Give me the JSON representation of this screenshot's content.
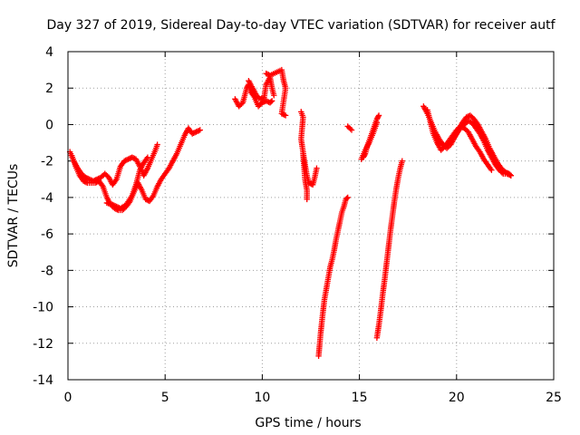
{
  "chart_data": {
    "type": "scatter",
    "title": "Day 327 of 2019, Sidereal Day-to-day VTEC variation (SDTVAR) for receiver autf",
    "xlabel": "GPS time / hours",
    "ylabel": "SDTVAR / TECUs",
    "xlim": [
      0,
      25
    ],
    "ylim": [
      -14,
      4
    ],
    "x_ticks": [
      0,
      5,
      10,
      15,
      20,
      25
    ],
    "y_ticks": [
      -14,
      -12,
      -10,
      -8,
      -6,
      -4,
      -2,
      0,
      2,
      4
    ],
    "grid": true,
    "marker": "plus",
    "color": "#ff0000",
    "series": [
      {
        "name": "SDTVAR",
        "segments": [
          [
            [
              0.1,
              -1.5
            ],
            [
              0.3,
              -2.0
            ],
            [
              0.5,
              -2.4
            ],
            [
              0.7,
              -2.7
            ],
            [
              0.9,
              -2.9
            ],
            [
              1.1,
              -3.0
            ],
            [
              1.3,
              -3.1
            ],
            [
              1.5,
              -3.0
            ],
            [
              1.7,
              -2.9
            ],
            [
              1.9,
              -2.7
            ],
            [
              2.1,
              -2.9
            ],
            [
              2.3,
              -3.3
            ],
            [
              2.5,
              -3.0
            ],
            [
              2.7,
              -2.3
            ],
            [
              2.9,
              -2.0
            ],
            [
              3.1,
              -1.9
            ],
            [
              3.3,
              -1.8
            ],
            [
              3.5,
              -1.9
            ],
            [
              3.7,
              -2.3
            ],
            [
              3.9,
              -2.8
            ],
            [
              4.1,
              -2.4
            ],
            [
              4.3,
              -1.9
            ],
            [
              4.5,
              -1.4
            ],
            [
              4.6,
              -1.1
            ]
          ],
          [
            [
              0.2,
              -1.7
            ],
            [
              0.4,
              -2.3
            ],
            [
              0.6,
              -2.8
            ],
            [
              0.8,
              -3.1
            ],
            [
              1.0,
              -3.2
            ],
            [
              1.2,
              -3.2
            ],
            [
              1.4,
              -3.2
            ],
            [
              1.6,
              -3.1
            ],
            [
              1.8,
              -3.4
            ],
            [
              2.0,
              -4.0
            ],
            [
              2.2,
              -4.4
            ],
            [
              2.4,
              -4.6
            ],
            [
              2.6,
              -4.7
            ],
            [
              2.8,
              -4.7
            ],
            [
              3.0,
              -4.5
            ],
            [
              3.2,
              -4.2
            ],
            [
              3.4,
              -3.7
            ],
            [
              3.6,
              -3.2
            ],
            [
              3.8,
              -3.6
            ],
            [
              4.0,
              -4.1
            ],
            [
              4.2,
              -4.2
            ],
            [
              4.4,
              -3.9
            ],
            [
              4.6,
              -3.4
            ],
            [
              4.8,
              -3.0
            ],
            [
              5.0,
              -2.7
            ],
            [
              5.2,
              -2.4
            ],
            [
              5.4,
              -2.0
            ],
            [
              5.6,
              -1.6
            ],
            [
              5.8,
              -1.1
            ],
            [
              6.0,
              -0.6
            ],
            [
              6.2,
              -0.2
            ],
            [
              6.4,
              -0.5
            ],
            [
              6.6,
              -0.4
            ],
            [
              6.8,
              -0.3
            ]
          ],
          [
            [
              2.0,
              -4.3
            ],
            [
              2.3,
              -4.4
            ],
            [
              2.5,
              -4.5
            ],
            [
              2.7,
              -4.6
            ],
            [
              3.0,
              -4.4
            ],
            [
              3.3,
              -3.9
            ],
            [
              3.5,
              -3.3
            ],
            [
              3.7,
              -2.5
            ],
            [
              3.9,
              -2.1
            ],
            [
              4.1,
              -1.8
            ]
          ],
          [
            [
              8.6,
              1.4
            ],
            [
              8.8,
              1.0
            ],
            [
              9.0,
              1.2
            ],
            [
              9.2,
              2.0
            ],
            [
              9.3,
              2.2
            ],
            [
              9.4,
              1.8
            ],
            [
              9.6,
              1.5
            ],
            [
              9.8,
              1.0
            ],
            [
              10.0,
              1.2
            ],
            [
              10.2,
              1.3
            ],
            [
              10.4,
              1.2
            ],
            [
              10.5,
              1.3
            ]
          ],
          [
            [
              9.3,
              2.4
            ],
            [
              9.5,
              2.0
            ],
            [
              9.7,
              1.6
            ],
            [
              9.9,
              1.4
            ],
            [
              10.1,
              1.5
            ],
            [
              10.2,
              2.2
            ],
            [
              10.4,
              2.6
            ],
            [
              10.5,
              2.0
            ],
            [
              10.6,
              1.6
            ]
          ],
          [
            [
              10.2,
              2.8
            ],
            [
              10.4,
              2.7
            ],
            [
              11.0,
              3.0
            ],
            [
              11.1,
              2.4
            ],
            [
              11.2,
              2.0
            ],
            [
              11.0,
              0.6
            ],
            [
              11.2,
              0.5
            ]
          ],
          [
            [
              12.0,
              0.7
            ],
            [
              12.1,
              0.4
            ],
            [
              12.0,
              -0.8
            ],
            [
              12.1,
              -1.5
            ],
            [
              12.2,
              -2.2
            ],
            [
              12.3,
              -2.8
            ],
            [
              12.4,
              -3.2
            ],
            [
              12.6,
              -3.3
            ],
            [
              12.7,
              -2.9
            ],
            [
              12.8,
              -2.4
            ]
          ],
          [
            [
              12.1,
              -1.6
            ],
            [
              12.2,
              -3.0
            ],
            [
              12.3,
              -3.6
            ],
            [
              12.3,
              -4.1
            ]
          ],
          [
            [
              12.9,
              -12.7
            ],
            [
              13.0,
              -11.5
            ],
            [
              13.1,
              -10.5
            ],
            [
              13.2,
              -9.6
            ],
            [
              13.3,
              -9.0
            ],
            [
              13.4,
              -8.4
            ],
            [
              13.5,
              -7.8
            ],
            [
              13.6,
              -7.4
            ],
            [
              13.7,
              -6.9
            ],
            [
              13.8,
              -6.3
            ],
            [
              13.9,
              -5.8
            ],
            [
              14.0,
              -5.3
            ],
            [
              14.1,
              -4.8
            ],
            [
              14.2,
              -4.5
            ],
            [
              14.3,
              -4.1
            ],
            [
              14.4,
              -4.0
            ]
          ],
          [
            [
              14.4,
              -0.1
            ],
            [
              14.6,
              -0.3
            ]
          ],
          [
            [
              15.2,
              -1.8
            ],
            [
              15.3,
              -1.6
            ],
            [
              15.4,
              -1.2
            ],
            [
              15.5,
              -0.9
            ],
            [
              15.6,
              -0.6
            ],
            [
              15.7,
              -0.3
            ],
            [
              15.8,
              0.0
            ],
            [
              15.9,
              0.3
            ],
            [
              16.0,
              0.5
            ]
          ],
          [
            [
              15.1,
              -1.9
            ],
            [
              15.3,
              -1.4
            ],
            [
              15.5,
              -1.0
            ],
            [
              15.7,
              -0.5
            ],
            [
              15.9,
              0.1
            ]
          ],
          [
            [
              15.9,
              -11.7
            ],
            [
              16.0,
              -11.0
            ],
            [
              16.1,
              -10.2
            ],
            [
              16.2,
              -9.3
            ],
            [
              16.3,
              -8.5
            ],
            [
              16.4,
              -7.6
            ],
            [
              16.5,
              -6.7
            ],
            [
              16.6,
              -5.8
            ],
            [
              16.7,
              -5.0
            ],
            [
              16.8,
              -4.2
            ],
            [
              16.9,
              -3.5
            ],
            [
              17.0,
              -2.9
            ],
            [
              17.1,
              -2.4
            ],
            [
              17.2,
              -2.0
            ]
          ],
          [
            [
              18.3,
              1.0
            ],
            [
              18.5,
              0.6
            ],
            [
              18.7,
              0.1
            ],
            [
              18.9,
              -0.4
            ],
            [
              19.1,
              -0.8
            ],
            [
              19.3,
              -1.1
            ],
            [
              19.5,
              -1.3
            ],
            [
              19.7,
              -1.1
            ],
            [
              19.9,
              -0.7
            ],
            [
              20.1,
              -0.3
            ],
            [
              20.3,
              0.1
            ],
            [
              20.5,
              0.4
            ],
            [
              20.7,
              0.5
            ],
            [
              20.9,
              0.3
            ],
            [
              21.1,
              0.0
            ],
            [
              21.3,
              -0.4
            ],
            [
              21.5,
              -0.8
            ],
            [
              21.7,
              -1.3
            ],
            [
              21.9,
              -1.7
            ],
            [
              22.1,
              -2.1
            ],
            [
              22.3,
              -2.4
            ],
            [
              22.5,
              -2.6
            ],
            [
              22.7,
              -2.7
            ],
            [
              22.8,
              -2.8
            ]
          ],
          [
            [
              18.5,
              0.8
            ],
            [
              18.8,
              -0.5
            ],
            [
              19.0,
              -1.0
            ],
            [
              19.2,
              -1.4
            ],
            [
              19.4,
              -1.2
            ],
            [
              19.6,
              -0.9
            ],
            [
              19.8,
              -0.6
            ],
            [
              20.0,
              -0.3
            ],
            [
              20.2,
              -0.1
            ],
            [
              20.4,
              -0.2
            ],
            [
              20.6,
              -0.4
            ],
            [
              20.8,
              -0.8
            ],
            [
              21.0,
              -1.2
            ],
            [
              21.2,
              -1.5
            ],
            [
              21.4,
              -1.9
            ],
            [
              21.6,
              -2.2
            ],
            [
              21.8,
              -2.5
            ]
          ],
          [
            [
              19.0,
              -0.8
            ],
            [
              19.2,
              -1.0
            ],
            [
              19.4,
              -1.2
            ],
            [
              19.6,
              -1.0
            ],
            [
              19.8,
              -0.8
            ],
            [
              20.0,
              -0.5
            ],
            [
              20.2,
              -0.2
            ],
            [
              20.4,
              0.0
            ],
            [
              20.6,
              0.2
            ],
            [
              20.8,
              0.1
            ],
            [
              21.0,
              -0.2
            ],
            [
              21.2,
              -0.5
            ],
            [
              21.4,
              -0.9
            ],
            [
              21.6,
              -1.4
            ],
            [
              21.8,
              -1.8
            ],
            [
              22.0,
              -2.2
            ],
            [
              22.2,
              -2.5
            ],
            [
              22.4,
              -2.7
            ],
            [
              22.6,
              -2.7
            ],
            [
              22.8,
              -2.8
            ]
          ]
        ]
      }
    ]
  }
}
